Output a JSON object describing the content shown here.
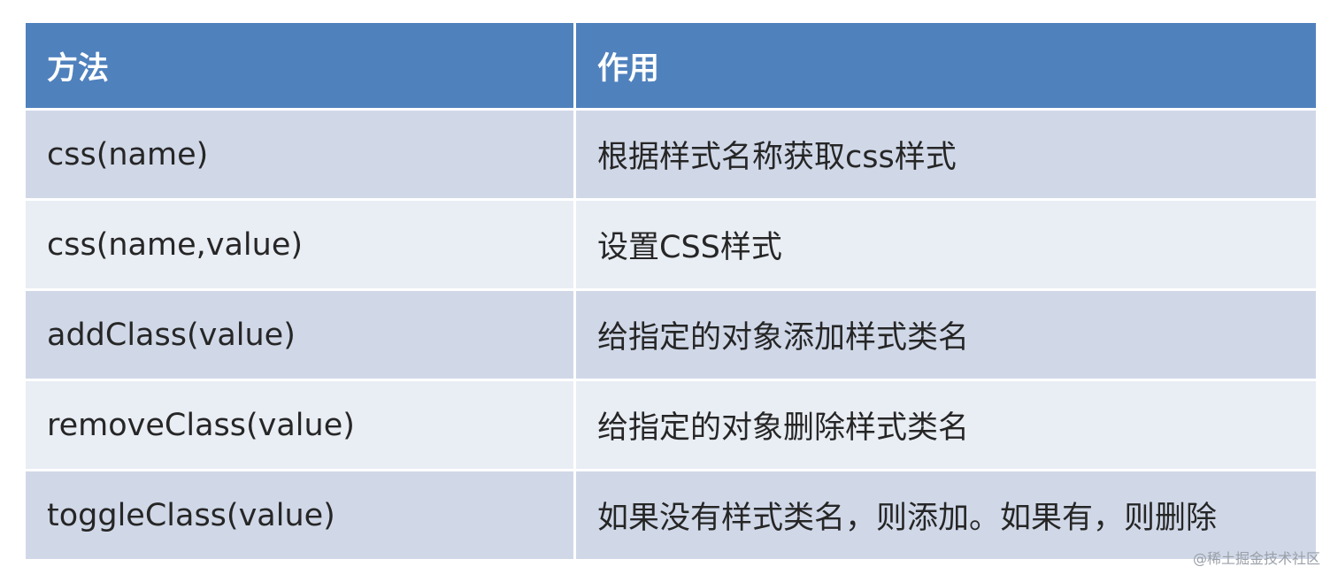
{
  "table": {
    "headers": [
      "方法",
      "作用"
    ],
    "rows": [
      {
        "method": "css(name)",
        "effect": "根据样式名称获取css样式"
      },
      {
        "method": "css(name,value)",
        "effect": "设置CSS样式"
      },
      {
        "method": "addClass(value)",
        "effect": "给指定的对象添加样式类名"
      },
      {
        "method": "removeClass(value)",
        "effect": "给指定的对象删除样式类名"
      },
      {
        "method": "toggleClass(value)",
        "effect": "如果没有样式类名，则添加。如果有，则删除"
      }
    ]
  },
  "watermark": "@稀土掘金技术社区",
  "colors": {
    "header": "#4f81bd",
    "row_odd": "#d0d8e8",
    "row_even": "#e9edf4"
  }
}
